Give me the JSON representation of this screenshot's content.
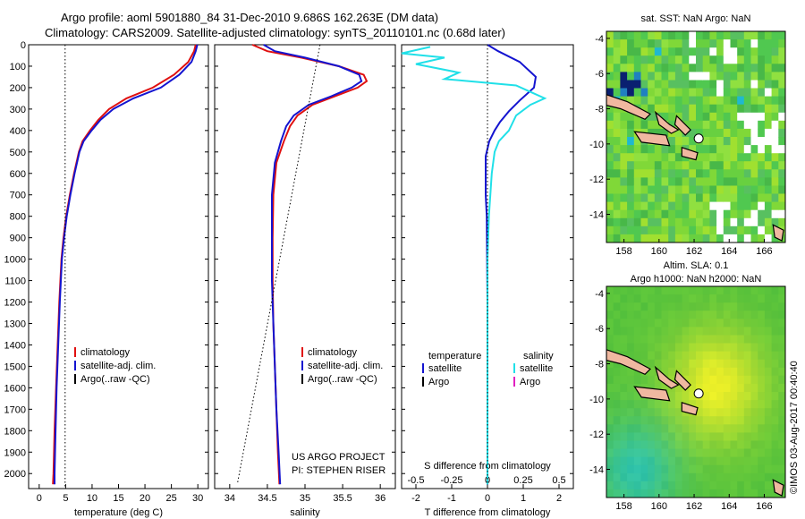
{
  "header": {
    "line1": "Argo profile: aoml 5901880_84 31-Dec-2010 9.686S 162.263E (DM data)",
    "line2": "Climatology: CARS2009. Satellite-adjusted climatology: synTS_20110101.nc (0.68d later)"
  },
  "credit": "©IMOS 03-Aug-2017 00:40:40",
  "colors": {
    "climatology": "#e01010",
    "satellite": "#1414d0",
    "argo": "#000000",
    "sal_satellite": "#20e0e8",
    "sal_argo": "#e020c0"
  },
  "chart_data": [
    {
      "type": "line",
      "name": "temperature-profile",
      "xlabel": "temperature (deg C)",
      "xlim": [
        -2,
        32
      ],
      "ylim": [
        2070,
        0
      ],
      "xticks": [
        0,
        5,
        10,
        15,
        20,
        25,
        30
      ],
      "yticks": [
        0,
        100,
        200,
        300,
        400,
        500,
        600,
        700,
        800,
        900,
        1000,
        1100,
        1200,
        1300,
        1400,
        1500,
        1600,
        1700,
        1800,
        1900,
        2000
      ],
      "legend": [
        "climatology",
        "satellite-adj. clim.",
        "Argo(..raw -QC)"
      ],
      "series": [
        {
          "name": "climatology",
          "color": "#e01010",
          "points": [
            [
              29.6,
              0
            ],
            [
              29.3,
              30
            ],
            [
              28.2,
              80
            ],
            [
              25.5,
              140
            ],
            [
              21.5,
              200
            ],
            [
              16.5,
              250
            ],
            [
              13.2,
              300
            ],
            [
              11.2,
              350
            ],
            [
              9.6,
              400
            ],
            [
              8.2,
              450
            ],
            [
              7.5,
              500
            ],
            [
              6.6,
              600
            ],
            [
              5.8,
              700
            ],
            [
              5.1,
              800
            ],
            [
              4.6,
              900
            ],
            [
              4.2,
              1000
            ],
            [
              3.8,
              1200
            ],
            [
              3.5,
              1400
            ],
            [
              3.2,
              1600
            ],
            [
              2.9,
              1800
            ],
            [
              2.7,
              2000
            ],
            [
              2.6,
              2050
            ]
          ]
        },
        {
          "name": "satellite-adj. clim.",
          "color": "#1414d0",
          "points": [
            [
              29.9,
              0
            ],
            [
              29.6,
              30
            ],
            [
              28.8,
              80
            ],
            [
              26.5,
              140
            ],
            [
              23.0,
              200
            ],
            [
              17.8,
              250
            ],
            [
              14.0,
              300
            ],
            [
              11.6,
              350
            ],
            [
              9.9,
              400
            ],
            [
              8.4,
              450
            ],
            [
              7.6,
              500
            ],
            [
              6.7,
              600
            ],
            [
              5.9,
              700
            ],
            [
              5.2,
              800
            ],
            [
              4.7,
              900
            ],
            [
              4.3,
              1000
            ],
            [
              3.9,
              1200
            ],
            [
              3.6,
              1400
            ],
            [
              3.3,
              1600
            ],
            [
              3.1,
              1800
            ],
            [
              2.9,
              2000
            ],
            [
              2.9,
              2050
            ]
          ]
        },
        {
          "name": "reference",
          "color": "#000000",
          "dotted": true,
          "points": [
            [
              4.9,
              0
            ],
            [
              4.9,
              2070
            ]
          ]
        }
      ]
    },
    {
      "type": "line",
      "name": "salinity-profile",
      "xlabel": "salinity",
      "xlim": [
        33.8,
        36.2
      ],
      "ylim": [
        2070,
        0
      ],
      "xticks": [
        34,
        34.5,
        35,
        35.5,
        36
      ],
      "legend": [
        "climatology",
        "satellite-adj. clim.",
        "Argo(..raw -QC)"
      ],
      "annotation": [
        "US ARGO PROJECT",
        "PI: STEPHEN RISER"
      ],
      "series": [
        {
          "name": "climatology",
          "color": "#e01010",
          "points": [
            [
              34.3,
              0
            ],
            [
              34.5,
              30
            ],
            [
              34.95,
              60
            ],
            [
              35.45,
              100
            ],
            [
              35.78,
              140
            ],
            [
              35.82,
              170
            ],
            [
              35.7,
              200
            ],
            [
              35.4,
              240
            ],
            [
              35.1,
              280
            ],
            [
              34.9,
              330
            ],
            [
              34.8,
              380
            ],
            [
              34.72,
              450
            ],
            [
              34.62,
              550
            ],
            [
              34.58,
              700
            ],
            [
              34.57,
              900
            ],
            [
              34.57,
              1100
            ],
            [
              34.58,
              1300
            ],
            [
              34.6,
              1500
            ],
            [
              34.62,
              1700
            ],
            [
              34.64,
              1900
            ],
            [
              34.66,
              2050
            ]
          ]
        },
        {
          "name": "satellite-adj. clim.",
          "color": "#1414d0",
          "points": [
            [
              34.45,
              0
            ],
            [
              34.6,
              30
            ],
            [
              35.0,
              60
            ],
            [
              35.45,
              100
            ],
            [
              35.72,
              140
            ],
            [
              35.75,
              170
            ],
            [
              35.62,
              200
            ],
            [
              35.35,
              240
            ],
            [
              35.05,
              280
            ],
            [
              34.85,
              330
            ],
            [
              34.75,
              380
            ],
            [
              34.68,
              450
            ],
            [
              34.6,
              550
            ],
            [
              34.56,
              700
            ],
            [
              34.56,
              900
            ],
            [
              34.56,
              1100
            ],
            [
              34.58,
              1300
            ],
            [
              34.6,
              1500
            ],
            [
              34.62,
              1700
            ],
            [
              34.65,
              1900
            ],
            [
              34.67,
              2050
            ]
          ]
        },
        {
          "name": "reference",
          "color": "#000000",
          "dotted": true,
          "points": [
            [
              35.2,
              0
            ],
            [
              34.1,
              2050
            ]
          ]
        }
      ]
    },
    {
      "type": "line",
      "name": "difference-profile",
      "xlabel": "T difference from climatology",
      "xlabel_top": "S difference from climatology",
      "xlim": [
        -2.4,
        2.4
      ],
      "ylim": [
        2070,
        0
      ],
      "xticks": [
        -2,
        -1,
        0,
        1,
        2
      ],
      "xtick_labels": [
        "-2",
        "-1",
        "0",
        "1",
        "2"
      ],
      "xticks_top": [
        -0.5,
        -0.25,
        0,
        0.25,
        0.5
      ],
      "xtick_labels_top": [
        "-0.5",
        "-0.25",
        "0",
        "0.25",
        "0.5"
      ],
      "legend_temperature": {
        "title": "temperature",
        "items": [
          "satellite",
          "Argo"
        ]
      },
      "legend_salinity": {
        "title": "salinity",
        "items": [
          "satellite",
          "Argo"
        ]
      },
      "series": [
        {
          "name": "T satellite",
          "color": "#1414d0",
          "points": [
            [
              0.0,
              0
            ],
            [
              0.3,
              30
            ],
            [
              0.9,
              80
            ],
            [
              1.35,
              150
            ],
            [
              1.3,
              200
            ],
            [
              0.9,
              260
            ],
            [
              0.6,
              310
            ],
            [
              0.35,
              360
            ],
            [
              0.2,
              400
            ],
            [
              0.05,
              450
            ],
            [
              -0.05,
              520
            ],
            [
              -0.05,
              600
            ],
            [
              -0.05,
              700
            ],
            [
              -0.02,
              800
            ],
            [
              -0.01,
              1000
            ],
            [
              0,
              1200
            ],
            [
              0,
              1400
            ],
            [
              0,
              1600
            ],
            [
              0,
              1800
            ],
            [
              0,
              2050
            ]
          ]
        },
        {
          "name": "S satellite",
          "color": "#20e0e8",
          "points": [
            [
              -0.4,
              10
            ],
            [
              -0.6,
              40
            ],
            [
              -0.3,
              60
            ],
            [
              -0.5,
              90
            ],
            [
              -0.2,
              130
            ],
            [
              -0.3,
              160
            ],
            [
              0.2,
              190
            ],
            [
              0.3,
              220
            ],
            [
              0.4,
              250
            ],
            [
              0.3,
              280
            ],
            [
              0.2,
              330
            ],
            [
              0.15,
              400
            ],
            [
              0.08,
              450
            ],
            [
              0.05,
              500
            ],
            [
              0.03,
              600
            ],
            [
              0.01,
              800
            ],
            [
              0,
              1000
            ],
            [
              0,
              1200
            ],
            [
              0,
              1400
            ],
            [
              0,
              1600
            ],
            [
              0,
              1800
            ],
            [
              0,
              2050
            ]
          ]
        },
        {
          "name": "reference",
          "color": "#000000",
          "dotted": true,
          "points": [
            [
              0,
              0
            ],
            [
              0,
              2070
            ]
          ]
        }
      ]
    },
    {
      "type": "heatmap",
      "name": "sst-map",
      "title": "sat. SST: NaN Argo: NaN",
      "xticks": [
        158,
        160,
        162,
        164,
        166
      ],
      "yticks": [
        -4,
        -6,
        -8,
        -10,
        -12,
        -14
      ],
      "xlim": [
        157,
        167.2
      ],
      "ylim": [
        -15.6,
        -3.6
      ],
      "marker": [
        162.26,
        -9.69
      ]
    },
    {
      "type": "heatmap",
      "name": "sla-map",
      "title": "Altim. SLA: 0.1",
      "subtitle": "Argo h1000: NaN h2000: NaN",
      "xticks": [
        158,
        160,
        162,
        164,
        166
      ],
      "yticks": [
        -4,
        -6,
        -8,
        -10,
        -12,
        -14
      ],
      "xlim": [
        157,
        167.2
      ],
      "ylim": [
        -15.6,
        -3.6
      ],
      "marker": [
        162.26,
        -9.69
      ]
    }
  ]
}
